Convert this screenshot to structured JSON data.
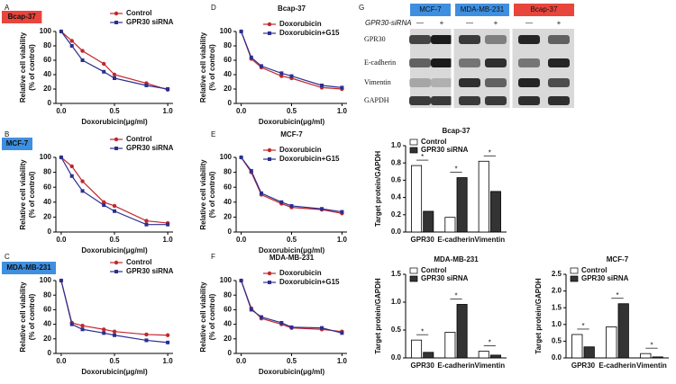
{
  "chart_data": [
    {
      "type": "line",
      "panel": "A",
      "badge": "Bcap-37",
      "badge_color": "#e8453c",
      "xlabel": "Doxorubicin(μg/ml)",
      "ylabel": [
        "Relative cell viability",
        "(% of control)"
      ],
      "x": [
        0,
        0.1,
        0.2,
        0.4,
        0.5,
        0.8,
        1.0
      ],
      "xlim": [
        -0.05,
        1.05
      ],
      "xticks": [
        {
          "value": 0,
          "label": "0.0"
        },
        0.5,
        {
          "value": 1,
          "label": "1.0"
        }
      ],
      "ylim": [
        0,
        100
      ],
      "yticks": [
        0,
        20,
        40,
        60,
        80,
        100
      ],
      "series": [
        {
          "name": "Control",
          "color": "#c1272d",
          "values": [
            100,
            87,
            73,
            55,
            40,
            28,
            19
          ]
        },
        {
          "name": "GPR30 siRNA",
          "color": "#2b2f8f",
          "values": [
            100,
            80,
            60,
            44,
            35,
            25,
            20
          ]
        }
      ]
    },
    {
      "type": "line",
      "panel": "B",
      "badge": "MCF-7",
      "badge_color": "#3f8fe0",
      "xlabel": "Doxorubicin(μg/ml)",
      "ylabel": [
        "Relative cell viability",
        "(% of control)"
      ],
      "x": [
        0,
        0.1,
        0.2,
        0.4,
        0.5,
        0.8,
        1.0
      ],
      "xlim": [
        -0.05,
        1.05
      ],
      "xticks": [
        {
          "value": 0,
          "label": "0.0"
        },
        0.5,
        {
          "value": 1,
          "label": "1.0"
        }
      ],
      "ylim": [
        0,
        100
      ],
      "yticks": [
        0,
        20,
        40,
        60,
        80,
        100
      ],
      "series": [
        {
          "name": "Control",
          "color": "#c1272d",
          "values": [
            100,
            88,
            68,
            40,
            35,
            15,
            12
          ]
        },
        {
          "name": "GPR30 siRNA",
          "color": "#2b2f8f",
          "values": [
            100,
            75,
            55,
            36,
            28,
            10,
            10
          ]
        }
      ]
    },
    {
      "type": "line",
      "panel": "C",
      "badge": "MDA-MB-231",
      "badge_color": "#3f8fe0",
      "xlabel": "Doxorubicin(μg/ml)",
      "ylabel": [
        "Relative cell viability",
        "(% of control)"
      ],
      "x": [
        0,
        0.1,
        0.2,
        0.4,
        0.5,
        0.8,
        1.0
      ],
      "xlim": [
        -0.05,
        1.05
      ],
      "xticks": [
        {
          "value": 0,
          "label": "0.0"
        },
        0.5,
        {
          "value": 1,
          "label": "1.0"
        }
      ],
      "ylim": [
        0,
        100
      ],
      "yticks": [
        0,
        20,
        40,
        60,
        80,
        100
      ],
      "series": [
        {
          "name": "Control",
          "color": "#c1272d",
          "values": [
            100,
            42,
            38,
            33,
            30,
            26,
            25
          ]
        },
        {
          "name": "GPR30 siRNA",
          "color": "#2b2f8f",
          "values": [
            100,
            40,
            33,
            28,
            25,
            18,
            15
          ]
        }
      ]
    },
    {
      "type": "line",
      "panel": "D",
      "title": "Bcap-37",
      "xlabel": "Doxorubicin(μg/ml)",
      "ylabel": [
        "Relative cell viability",
        "(% of control)"
      ],
      "x": [
        0,
        0.1,
        0.2,
        0.4,
        0.5,
        0.8,
        1.0
      ],
      "xlim": [
        -0.05,
        1.05
      ],
      "xticks": [
        {
          "value": 0,
          "label": "0.0"
        },
        0.5,
        {
          "value": 1,
          "label": "1.0"
        }
      ],
      "ylim": [
        0,
        100
      ],
      "yticks": [
        0,
        20,
        40,
        60,
        80,
        100
      ],
      "series": [
        {
          "name": "Doxorubicin",
          "color": "#c1272d",
          "values": [
            100,
            62,
            50,
            38,
            35,
            22,
            20
          ]
        },
        {
          "name": "Doxorubicin+G15",
          "color": "#2b2f8f",
          "values": [
            100,
            64,
            52,
            42,
            38,
            25,
            22
          ]
        }
      ]
    },
    {
      "type": "line",
      "panel": "E",
      "title": "MCF-7",
      "xlabel": "Doxorubicin(μg/ml)",
      "ylabel": [
        "Relative cell viability",
        "(% of control)"
      ],
      "x": [
        0,
        0.1,
        0.2,
        0.4,
        0.5,
        0.8,
        1.0
      ],
      "xlim": [
        -0.05,
        1.05
      ],
      "xticks": [
        {
          "value": 0,
          "label": "0.0"
        },
        0.5,
        {
          "value": 1,
          "label": "1.0"
        }
      ],
      "ylim": [
        0,
        100
      ],
      "yticks": [
        0,
        20,
        40,
        60,
        80,
        100
      ],
      "series": [
        {
          "name": "Doxorubicin",
          "color": "#c1272d",
          "values": [
            100,
            80,
            50,
            38,
            33,
            30,
            25
          ]
        },
        {
          "name": "Doxorubicin+G15",
          "color": "#2b2f8f",
          "values": [
            100,
            82,
            52,
            40,
            35,
            31,
            27
          ]
        }
      ]
    },
    {
      "type": "line",
      "panel": "F",
      "title": "MDA-MB-231",
      "xlabel": "Doxorubicin(μg/ml)",
      "ylabel": [
        "Relative cell viability",
        "(% of control)"
      ],
      "x": [
        0,
        0.1,
        0.2,
        0.4,
        0.5,
        0.8,
        1.0
      ],
      "xlim": [
        -0.05,
        1.05
      ],
      "xticks": [
        {
          "value": 0,
          "label": "0.0"
        },
        0.5,
        {
          "value": 1,
          "label": "1.0"
        }
      ],
      "ylim": [
        0,
        100
      ],
      "yticks": [
        0,
        20,
        40,
        60,
        80,
        100
      ],
      "series": [
        {
          "name": "Doxorubicin",
          "color": "#c1272d",
          "values": [
            100,
            62,
            48,
            40,
            35,
            33,
            30
          ]
        },
        {
          "name": "Doxorubicin+G15",
          "color": "#2b2f8f",
          "values": [
            100,
            60,
            50,
            42,
            36,
            35,
            28
          ]
        }
      ]
    },
    {
      "type": "bar",
      "title": "Bcap-37",
      "ylabel": "Target protein/GAPDH",
      "categories": [
        "GPR30",
        "E-cadherin",
        "Vimentin"
      ],
      "ylim": [
        0,
        1.0
      ],
      "yticks": [
        {
          "value": 0,
          "label": "0.0"
        },
        0.2,
        0.4,
        0.6,
        0.8,
        {
          "value": 1,
          "label": "1.0"
        }
      ],
      "series": [
        {
          "name": "Control",
          "color": "#ffffff",
          "values": [
            0.77,
            0.17,
            0.82
          ]
        },
        {
          "name": "GPR30 siRNA",
          "color": "#333333",
          "values": [
            0.24,
            0.63,
            0.47
          ]
        }
      ],
      "annotations": [
        "*",
        "*",
        "*"
      ]
    },
    {
      "type": "bar",
      "title": "MDA-MB-231",
      "ylabel": "Target protein/GAPDH",
      "categories": [
        "GPR30",
        "E-cadherin",
        "Vimentin"
      ],
      "ylim": [
        0,
        1.5
      ],
      "yticks": [
        {
          "value": 0,
          "label": "0.0"
        },
        0.5,
        {
          "value": 1,
          "label": "1.0"
        },
        1.5
      ],
      "series": [
        {
          "name": "Control",
          "color": "#ffffff",
          "values": [
            0.32,
            0.46,
            0.12
          ]
        },
        {
          "name": "GPR30 siRNA",
          "color": "#333333",
          "values": [
            0.1,
            0.96,
            0.05
          ]
        }
      ],
      "annotations": [
        "*",
        "*",
        "*"
      ]
    },
    {
      "type": "bar",
      "title": "MCF-7",
      "ylabel": "Target protein/GAPDH",
      "categories": [
        "GPR30",
        "E-cadherin",
        "Vimentin"
      ],
      "ylim": [
        0,
        2.5
      ],
      "yticks": [
        {
          "value": 0,
          "label": "0.0"
        },
        0.5,
        {
          "value": 1,
          "label": "1.0"
        },
        1.5,
        {
          "value": 2,
          "label": "2.0"
        },
        2.5
      ],
      "series": [
        {
          "name": "Control",
          "color": "#ffffff",
          "values": [
            0.7,
            0.93,
            0.13
          ]
        },
        {
          "name": "GPR30 siRNA",
          "color": "#333333",
          "values": [
            0.33,
            1.62,
            0.03
          ]
        }
      ],
      "annotations": [
        "*",
        "*",
        "*"
      ]
    }
  ],
  "blot": {
    "panel": "G",
    "treatment": "GPR30-siRNA",
    "cell_lines": [
      {
        "name": "MCF-7",
        "color": "#3f8fe0"
      },
      {
        "name": "MDA-MB-231",
        "color": "#3f8fe0"
      },
      {
        "name": "Bcap-37",
        "color": "#e8453c"
      }
    ],
    "lanes": [
      "—",
      "+",
      "—",
      "+",
      "—",
      "+"
    ],
    "proteins": [
      "GPR30",
      "E-cadherin",
      "Vimentin",
      "GAPDH"
    ]
  }
}
